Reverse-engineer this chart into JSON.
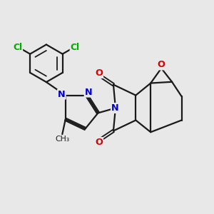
{
  "bg_color": "#e8e8e8",
  "bond_color": "#1a1a1a",
  "bw": 1.6,
  "atom_colors": {
    "O": "#dd0000",
    "N": "#0000cc",
    "Cl": "#00aa00",
    "C": "#1a1a1a"
  },
  "font_size": 9.0,
  "small_font": 7.8
}
